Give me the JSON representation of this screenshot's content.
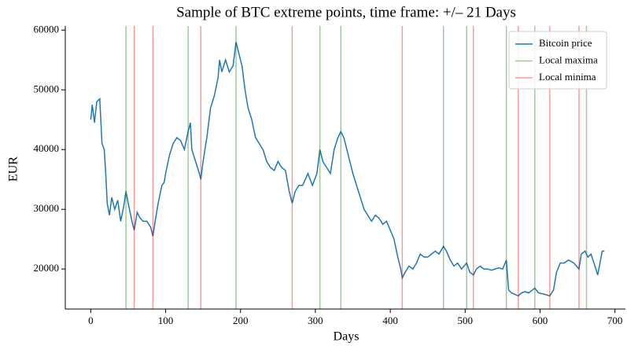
{
  "chart_data": {
    "type": "line",
    "title": "Sample of BTC extreme points, time frame: +/– 21 Days",
    "x_label": "Days",
    "y_label": "EUR",
    "x": [
      0,
      2,
      5,
      8,
      12,
      15,
      18,
      20,
      22,
      25,
      28,
      32,
      36,
      40,
      44,
      47,
      50,
      55,
      58,
      62,
      66,
      70,
      75,
      80,
      83,
      86,
      90,
      95,
      98,
      100,
      105,
      110,
      115,
      120,
      125,
      130,
      133,
      135,
      140,
      145,
      147,
      150,
      155,
      160,
      165,
      170,
      172,
      175,
      180,
      185,
      190,
      194,
      198,
      202,
      206,
      210,
      215,
      220,
      225,
      230,
      235,
      240,
      245,
      250,
      255,
      260,
      265,
      269,
      273,
      278,
      283,
      290,
      296,
      302,
      306,
      310,
      315,
      320,
      325,
      330,
      334,
      338,
      342,
      346,
      350,
      355,
      360,
      365,
      370,
      375,
      380,
      385,
      390,
      395,
      400,
      405,
      410,
      414,
      416,
      420,
      425,
      430,
      435,
      440,
      445,
      450,
      455,
      460,
      465,
      471,
      475,
      480,
      485,
      490,
      495,
      502,
      506,
      511,
      515,
      520,
      525,
      530,
      535,
      540,
      545,
      550,
      555,
      558,
      562,
      571,
      575,
      580,
      585,
      590,
      593,
      598,
      605,
      613,
      618,
      622,
      627,
      632,
      638,
      645,
      652,
      655,
      660,
      664,
      668,
      672,
      677,
      680,
      683,
      686
    ],
    "series": [
      {
        "name": "Bitcoin price",
        "color": "#1f77b4",
        "values": [
          45000,
          47500,
          44500,
          48000,
          48500,
          41000,
          40000,
          36000,
          31000,
          29000,
          32000,
          30000,
          31500,
          28000,
          30500,
          33000,
          31000,
          28000,
          26500,
          29500,
          28500,
          28000,
          28000,
          27000,
          25500,
          28000,
          31000,
          34000,
          34500,
          36000,
          39000,
          41000,
          42000,
          41500,
          40000,
          43000,
          44500,
          40000,
          38000,
          36000,
          35000,
          38000,
          42000,
          47000,
          49000,
          52000,
          55000,
          53000,
          55000,
          53000,
          54000,
          58000,
          56000,
          54000,
          50000,
          47000,
          45000,
          42000,
          41000,
          40000,
          38000,
          37000,
          36500,
          38000,
          37000,
          36500,
          33000,
          31000,
          33000,
          34000,
          34000,
          36000,
          34000,
          36000,
          40000,
          38000,
          37000,
          36000,
          40000,
          42000,
          43000,
          42000,
          40000,
          38000,
          36000,
          34000,
          32000,
          30000,
          29000,
          28000,
          29000,
          28500,
          27500,
          28000,
          26500,
          25000,
          22000,
          20000,
          18500,
          19500,
          20500,
          20000,
          21000,
          22500,
          22000,
          22000,
          22500,
          23000,
          22500,
          23800,
          23000,
          21500,
          20500,
          21000,
          20000,
          21000,
          19500,
          19000,
          20000,
          20500,
          20000,
          20000,
          19800,
          20000,
          20200,
          20000,
          21500,
          16500,
          16000,
          15500,
          16000,
          16200,
          16000,
          16500,
          16800,
          16000,
          15800,
          15500,
          16500,
          19500,
          21000,
          21000,
          21500,
          21000,
          20000,
          22500,
          23000,
          22000,
          22500,
          21000,
          19000,
          21000,
          23000,
          23000
        ]
      },
      {
        "name": "Local maxima",
        "color": "green",
        "opacity": 0.4,
        "vlines": [
          47,
          130,
          194,
          306,
          334,
          471,
          502,
          555,
          593,
          662
        ]
      },
      {
        "name": "Local minima",
        "color": "red",
        "opacity": 0.4,
        "vlines": [
          58,
          83,
          147,
          269,
          416,
          511,
          571,
          613,
          652
        ]
      }
    ],
    "xlim": [
      -34,
      714
    ],
    "ylim": [
      13300,
      60700
    ],
    "xticks": [
      0,
      100,
      200,
      300,
      400,
      500,
      600,
      700
    ],
    "yticks": [
      20000,
      30000,
      40000,
      50000,
      60000
    ],
    "legend": "upper right"
  }
}
